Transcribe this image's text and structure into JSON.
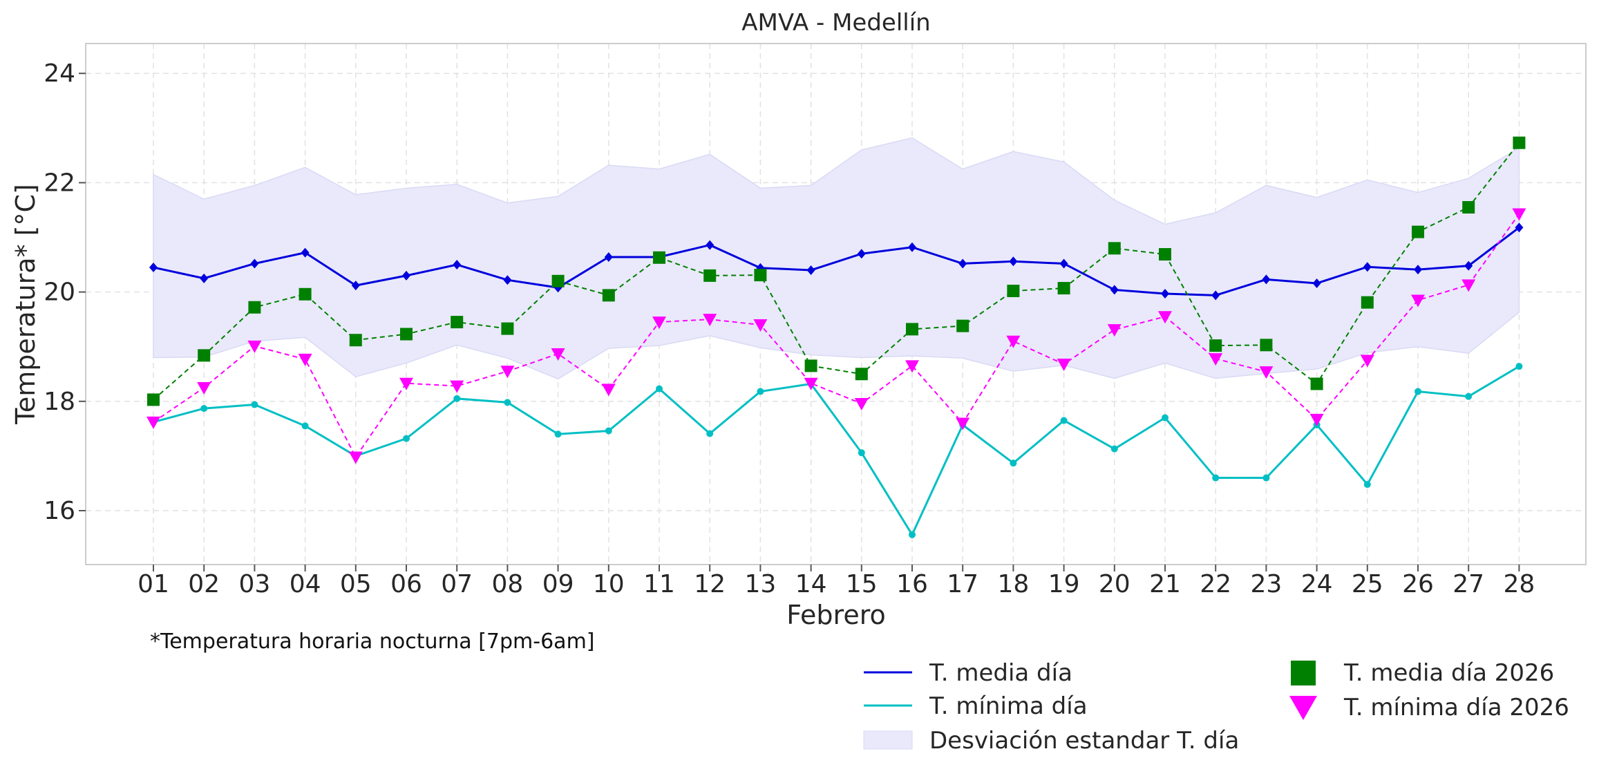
{
  "chart_data": {
    "type": "line",
    "title": "AMVA - Medellín",
    "xlabel": "Febrero",
    "ylabel": "Temperatura* [°C]",
    "note": "*Temperatura horaria nocturna [7pm-6am]",
    "ylim": [
      15.0,
      24.5
    ],
    "yticks": [
      "16",
      "18",
      "20",
      "22",
      "24"
    ],
    "categories": [
      "01",
      "02",
      "03",
      "04",
      "05",
      "06",
      "07",
      "08",
      "09",
      "10",
      "11",
      "12",
      "13",
      "14",
      "15",
      "16",
      "17",
      "18",
      "19",
      "20",
      "21",
      "22",
      "23",
      "24",
      "25",
      "26",
      "27",
      "28"
    ],
    "grid": true,
    "legend_position": "bottom-right",
    "series": [
      {
        "name": "T. media día",
        "kind": "line",
        "color": "#0000dd",
        "marker": "diamond",
        "values": [
          20.45,
          20.25,
          20.52,
          20.72,
          20.12,
          20.3,
          20.5,
          20.22,
          20.08,
          20.64,
          20.64,
          20.86,
          20.44,
          20.4,
          20.7,
          20.82,
          20.52,
          20.56,
          20.52,
          20.04,
          19.97,
          19.94,
          20.23,
          20.16,
          20.46,
          20.41,
          20.48,
          21.18
        ]
      },
      {
        "name": "T. mínima día",
        "kind": "line",
        "color": "#00bfc4",
        "marker": "circle",
        "values": [
          17.62,
          17.87,
          17.94,
          17.55,
          17.0,
          17.32,
          18.05,
          17.98,
          17.4,
          17.46,
          18.23,
          17.41,
          18.18,
          18.32,
          17.06,
          15.56,
          17.57,
          16.87,
          17.65,
          17.13,
          17.7,
          16.6,
          16.6,
          17.57,
          16.48,
          18.18,
          18.09,
          18.64
        ]
      },
      {
        "name": "T. media día 2026",
        "kind": "dashed",
        "color": "#008000",
        "marker": "square",
        "values": [
          18.03,
          18.84,
          19.72,
          19.96,
          19.12,
          19.23,
          19.45,
          19.33,
          20.2,
          19.94,
          20.63,
          20.3,
          20.31,
          18.65,
          18.5,
          19.32,
          19.38,
          20.02,
          20.07,
          20.8,
          20.69,
          19.02,
          19.03,
          18.32,
          19.81,
          21.1,
          21.55,
          22.73
        ]
      },
      {
        "name": "T. mínima día 2026",
        "kind": "dashed",
        "color": "#ff00ff",
        "marker": "triangle-down",
        "values": [
          17.62,
          18.25,
          19.01,
          18.77,
          16.98,
          18.33,
          18.28,
          18.55,
          18.87,
          18.22,
          19.45,
          19.5,
          19.4,
          18.33,
          17.96,
          18.65,
          17.6,
          19.1,
          18.68,
          19.31,
          19.55,
          18.78,
          18.54,
          17.67,
          18.75,
          19.85,
          20.13,
          21.43
        ]
      }
    ],
    "band": {
      "name": "Desviación estandar T. día",
      "color": "#e9e9fb",
      "upper": [
        22.15,
        21.7,
        21.95,
        22.28,
        21.78,
        21.9,
        21.97,
        21.63,
        21.75,
        22.32,
        22.25,
        22.52,
        21.9,
        21.95,
        22.6,
        22.82,
        22.25,
        22.57,
        22.38,
        21.68,
        21.24,
        21.45,
        21.95,
        21.73,
        22.05,
        21.82,
        22.08,
        22.64
      ],
      "lower": [
        18.8,
        18.81,
        19.1,
        19.17,
        18.45,
        18.7,
        19.03,
        18.79,
        18.41,
        18.97,
        19.02,
        19.2,
        18.98,
        18.85,
        18.8,
        18.83,
        18.79,
        18.55,
        18.66,
        18.42,
        18.7,
        18.42,
        18.51,
        18.59,
        18.89,
        19.0,
        18.88,
        19.63
      ]
    }
  }
}
